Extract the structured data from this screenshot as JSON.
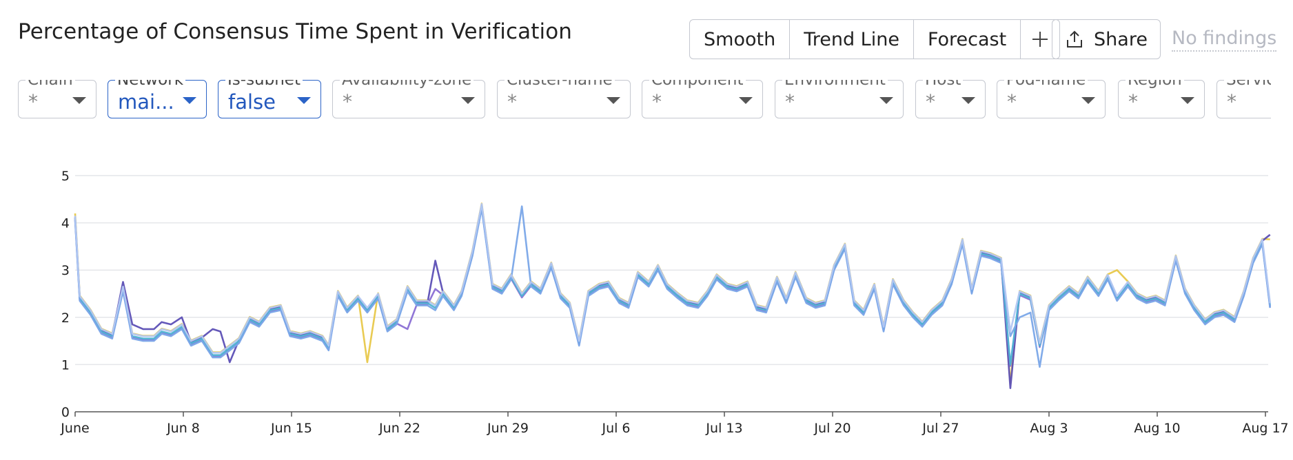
{
  "header": {
    "title": "Percentage of Consensus Time Spent in Verification",
    "buttons": [
      "Smooth",
      "Trend Line",
      "Forecast",
      "+"
    ],
    "share_label": "Share",
    "findings_label": "No findings"
  },
  "filters": [
    {
      "label": "Chain",
      "value": "*",
      "active": false
    },
    {
      "label": "Network",
      "value": "mai...",
      "active": true
    },
    {
      "label": "Is-subnet",
      "value": "false",
      "active": true
    },
    {
      "label": "Availability-zone",
      "value": "*",
      "active": false
    },
    {
      "label": "Cluster-name",
      "value": "*",
      "active": false
    },
    {
      "label": "Component",
      "value": "*",
      "active": false
    },
    {
      "label": "Environment",
      "value": "*",
      "active": false
    },
    {
      "label": "Host",
      "value": "*",
      "active": false
    },
    {
      "label": "Pod-name",
      "value": "*",
      "active": false
    },
    {
      "label": "Region",
      "value": "*",
      "active": false
    },
    {
      "label": "Servic",
      "value": "*",
      "active": false
    }
  ],
  "chart_data": {
    "type": "line",
    "title": "Percentage of Consensus Time Spent in Verification",
    "xlabel": "",
    "ylabel": "",
    "ylim": [
      0,
      5
    ],
    "yticks": [
      0,
      1,
      2,
      3,
      4,
      5
    ],
    "xlim": [
      "2025-06-01",
      "2025-08-17"
    ],
    "xticks": [
      {
        "label": "June",
        "day": 0
      },
      {
        "label": "Jun 8",
        "day": 7
      },
      {
        "label": "Jun 15",
        "day": 14
      },
      {
        "label": "Jun 22",
        "day": 21
      },
      {
        "label": "Jun 29",
        "day": 28
      },
      {
        "label": "Jul 6",
        "day": 35
      },
      {
        "label": "Jul 13",
        "day": 42
      },
      {
        "label": "Jul 20",
        "day": 49
      },
      {
        "label": "Jul 27",
        "day": 56
      },
      {
        "label": "Aug 3",
        "day": 63
      },
      {
        "label": "Aug 10",
        "day": 70
      },
      {
        "label": "Aug 17",
        "day": 77
      }
    ],
    "grid": true,
    "legend": "none",
    "base_series": [
      [
        0,
        4.1
      ],
      [
        0.3,
        2.4
      ],
      [
        1.0,
        2.1
      ],
      [
        1.7,
        1.7
      ],
      [
        2.4,
        1.6
      ],
      [
        3.1,
        2.6
      ],
      [
        3.7,
        1.6
      ],
      [
        4.4,
        1.55
      ],
      [
        5.1,
        1.55
      ],
      [
        5.6,
        1.7
      ],
      [
        6.2,
        1.65
      ],
      [
        6.9,
        1.8
      ],
      [
        7.5,
        1.45
      ],
      [
        8.2,
        1.55
      ],
      [
        8.9,
        1.2
      ],
      [
        9.4,
        1.2
      ],
      [
        10.0,
        1.35
      ],
      [
        10.6,
        1.5
      ],
      [
        11.3,
        1.95
      ],
      [
        11.9,
        1.85
      ],
      [
        12.6,
        2.15
      ],
      [
        13.3,
        2.2
      ],
      [
        13.9,
        1.65
      ],
      [
        14.6,
        1.6
      ],
      [
        15.2,
        1.65
      ],
      [
        16.0,
        1.55
      ],
      [
        16.4,
        1.35
      ],
      [
        17.0,
        2.5
      ],
      [
        17.6,
        2.15
      ],
      [
        18.3,
        2.4
      ],
      [
        18.9,
        2.15
      ],
      [
        19.6,
        2.45
      ],
      [
        20.2,
        1.75
      ],
      [
        20.8,
        1.9
      ],
      [
        21.5,
        2.6
      ],
      [
        22.1,
        2.3
      ],
      [
        22.8,
        2.3
      ],
      [
        23.3,
        2.2
      ],
      [
        23.8,
        2.5
      ],
      [
        24.5,
        2.2
      ],
      [
        25.0,
        2.5
      ],
      [
        25.7,
        3.35
      ],
      [
        26.3,
        4.35
      ],
      [
        27.0,
        2.65
      ],
      [
        27.6,
        2.55
      ],
      [
        28.2,
        2.85
      ],
      [
        28.9,
        2.45
      ],
      [
        29.5,
        2.7
      ],
      [
        30.1,
        2.55
      ],
      [
        30.8,
        3.1
      ],
      [
        31.4,
        2.45
      ],
      [
        32.0,
        2.25
      ],
      [
        32.6,
        1.45
      ],
      [
        33.2,
        2.5
      ],
      [
        33.9,
        2.65
      ],
      [
        34.5,
        2.7
      ],
      [
        35.2,
        2.35
      ],
      [
        35.8,
        2.25
      ],
      [
        36.4,
        2.9
      ],
      [
        37.1,
        2.7
      ],
      [
        37.7,
        3.05
      ],
      [
        38.3,
        2.65
      ],
      [
        39.0,
        2.45
      ],
      [
        39.6,
        2.3
      ],
      [
        40.3,
        2.25
      ],
      [
        40.9,
        2.5
      ],
      [
        41.5,
        2.85
      ],
      [
        42.2,
        2.65
      ],
      [
        42.8,
        2.6
      ],
      [
        43.5,
        2.7
      ],
      [
        44.1,
        2.2
      ],
      [
        44.7,
        2.15
      ],
      [
        45.4,
        2.8
      ],
      [
        46.0,
        2.35
      ],
      [
        46.6,
        2.9
      ],
      [
        47.3,
        2.35
      ],
      [
        47.9,
        2.25
      ],
      [
        48.5,
        2.3
      ],
      [
        49.1,
        3.05
      ],
      [
        49.8,
        3.5
      ],
      [
        50.4,
        2.3
      ],
      [
        51.0,
        2.1
      ],
      [
        51.7,
        2.65
      ],
      [
        52.3,
        1.75
      ],
      [
        52.9,
        2.75
      ],
      [
        53.6,
        2.3
      ],
      [
        54.2,
        2.05
      ],
      [
        54.8,
        1.85
      ],
      [
        55.4,
        2.1
      ],
      [
        56.1,
        2.3
      ],
      [
        56.7,
        2.75
      ],
      [
        57.4,
        3.6
      ],
      [
        58.0,
        2.55
      ],
      [
        58.6,
        3.35
      ],
      [
        59.2,
        3.3
      ],
      [
        59.9,
        3.2
      ],
      [
        60.5,
        1.0
      ],
      [
        61.1,
        2.5
      ],
      [
        61.8,
        2.4
      ],
      [
        62.4,
        1.4
      ],
      [
        63.0,
        2.2
      ],
      [
        63.6,
        2.4
      ],
      [
        64.3,
        2.6
      ],
      [
        64.9,
        2.45
      ],
      [
        65.5,
        2.8
      ],
      [
        66.2,
        2.5
      ],
      [
        66.8,
        2.85
      ],
      [
        67.4,
        2.4
      ],
      [
        68.1,
        2.7
      ],
      [
        68.7,
        2.45
      ],
      [
        69.3,
        2.35
      ],
      [
        69.9,
        2.4
      ],
      [
        70.5,
        2.3
      ],
      [
        71.2,
        3.25
      ],
      [
        71.8,
        2.55
      ],
      [
        72.4,
        2.2
      ],
      [
        73.1,
        1.9
      ],
      [
        73.7,
        2.05
      ],
      [
        74.3,
        2.1
      ],
      [
        75.0,
        1.95
      ],
      [
        75.6,
        2.5
      ],
      [
        76.2,
        3.2
      ],
      [
        76.8,
        3.6
      ],
      [
        77.3,
        2.25
      ]
    ],
    "series": [
      {
        "color": "#e8c84a",
        "offset": 0.06,
        "overrides": {
          "0": 4.2,
          "30": 1.05,
          "96": 0.6,
          "107": 3.0,
          "123": 3.65
        }
      },
      {
        "color": "#5c4fb5",
        "offset": 0.02,
        "overrides": {
          "5": 2.75,
          "6": 1.85,
          "7": 1.75,
          "8": 1.75,
          "9": 1.9,
          "10": 1.85,
          "11": 2.0,
          "14": 1.75,
          "15": 1.7,
          "16": 1.05,
          "37": 3.2,
          "96": 0.5,
          "123": 3.75
        }
      },
      {
        "color": "#8a6fd4",
        "offset": -0.03,
        "overrides": {
          "34": 1.75,
          "37": 2.6
        }
      },
      {
        "color": "#4db3d3",
        "offset": 0.0,
        "overrides": {}
      },
      {
        "color": "#7aa7e8",
        "offset": -0.05,
        "overrides": {
          "96": 1.6,
          "97": 2.0,
          "98": 2.1,
          "99": 0.95,
          "46": 4.35
        }
      },
      {
        "color": "#b3c7f2",
        "offset": 0.05,
        "overrides": {
          "96": 1.7
        }
      }
    ]
  }
}
